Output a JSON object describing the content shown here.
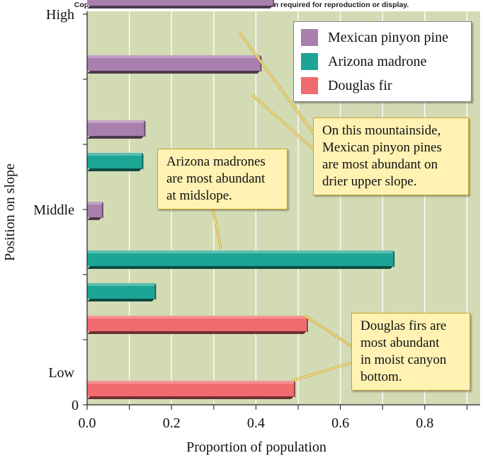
{
  "copyright": "Copyright © The McGraw-Hill Companies, Inc. Permission required for reproduction or display.",
  "chart_data": {
    "type": "bar",
    "orientation": "horizontal",
    "title": "",
    "xlabel": "Proportion of population",
    "ylabel": "Position on slope",
    "xlim": [
      0,
      0.95
    ],
    "xticks": [
      "0.0",
      "0.2",
      "0.4",
      "0.6",
      "0.8"
    ],
    "xtick_values": [
      0.0,
      0.2,
      0.4,
      0.6,
      0.8
    ],
    "y_origin_label": "0",
    "ytick_labels": [
      {
        "label": "High",
        "level": 6
      },
      {
        "label": "Middle",
        "level": 3
      },
      {
        "label": "Low",
        "level": 0.5
      }
    ],
    "grid": "vertical",
    "legend_placement": "top-right",
    "series": [
      {
        "name": "Mexican pinyon pine",
        "color": "#a97fae"
      },
      {
        "name": "Arizona madrone",
        "color": "#1ca594"
      },
      {
        "name": "Douglas fir",
        "color": "#f06b6e"
      }
    ],
    "bars": [
      {
        "series": "Mexican pinyon pine",
        "level": 6.25,
        "value": 0.44
      },
      {
        "series": "Mexican pinyon pine",
        "level": 5.25,
        "value": 0.41
      },
      {
        "series": "Mexican pinyon pine",
        "level": 4.25,
        "value": 0.135
      },
      {
        "series": "Arizona madrone",
        "level": 3.75,
        "value": 0.13
      },
      {
        "series": "Mexican pinyon pine",
        "level": 3.0,
        "value": 0.035
      },
      {
        "series": "Arizona madrone",
        "level": 2.25,
        "value": 0.725
      },
      {
        "series": "Arizona madrone",
        "level": 1.75,
        "value": 0.16
      },
      {
        "series": "Douglas fir",
        "level": 1.25,
        "value": 0.52
      },
      {
        "series": "Douglas fir",
        "level": 0.25,
        "value": 0.49
      }
    ],
    "annotations": [
      {
        "id": "pinyon",
        "lines": [
          "On this mountainside,",
          "Mexican pinyon pines",
          "are most abundant on",
          "drier upper slope."
        ]
      },
      {
        "id": "madrone",
        "lines": [
          "Arizona madrones",
          "are most abundant",
          "at midslope."
        ]
      },
      {
        "id": "fir",
        "lines": [
          "Douglas firs are",
          "most abundant",
          "in moist canyon",
          "bottom."
        ]
      }
    ],
    "colors": {
      "plot_bg": "#d3dbb5",
      "callout_bg": "#fff2b3"
    }
  }
}
